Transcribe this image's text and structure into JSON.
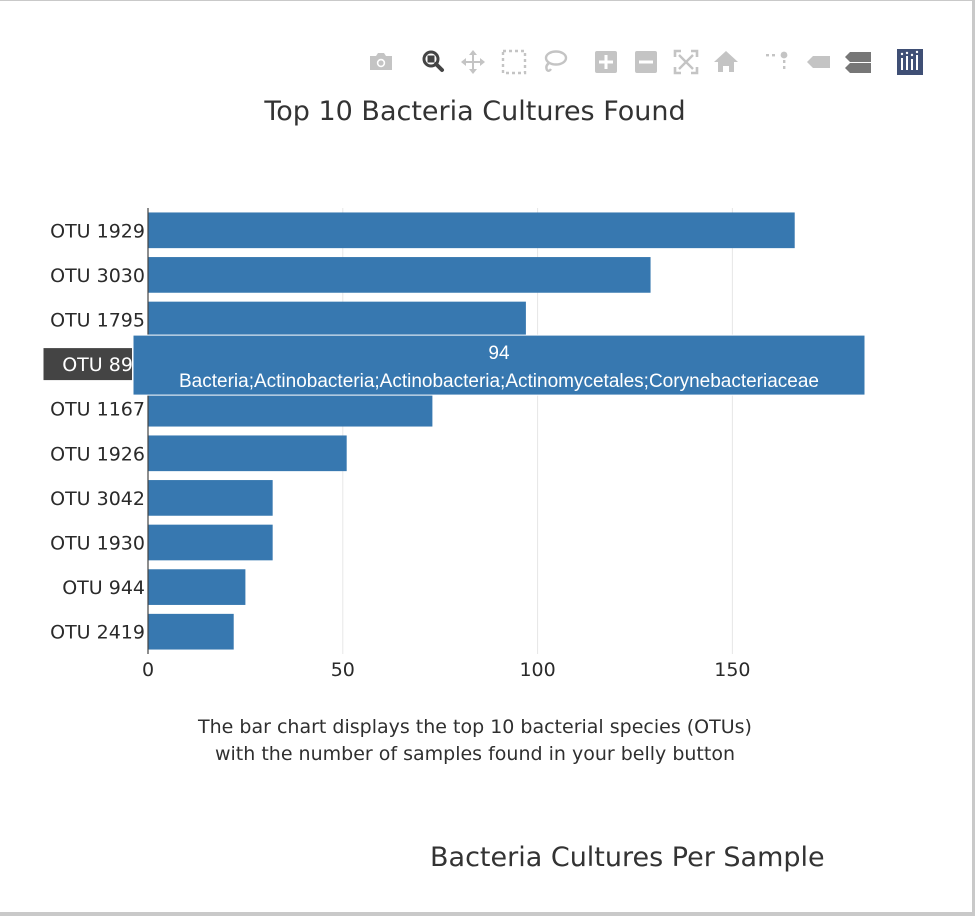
{
  "modebar": {
    "buttons": [
      {
        "icon": "camera-icon",
        "title": "Download plot as a png"
      },
      {
        "icon": "zoom-icon",
        "title": "Zoom"
      },
      {
        "icon": "pan-icon",
        "title": "Pan"
      },
      {
        "icon": "box-select-icon",
        "title": "Box Select"
      },
      {
        "icon": "lasso-select-icon",
        "title": "Lasso Select"
      },
      {
        "icon": "zoom-in-icon",
        "title": "Zoom in"
      },
      {
        "icon": "zoom-out-icon",
        "title": "Zoom out"
      },
      {
        "icon": "autoscale-icon",
        "title": "Autoscale"
      },
      {
        "icon": "reset-axes-icon",
        "title": "Reset axes"
      },
      {
        "icon": "toggle-spike-lines-icon",
        "title": "Toggle Spike Lines"
      },
      {
        "icon": "hover-closest-icon",
        "title": "Show closest data on hover"
      },
      {
        "icon": "hover-compare-icon",
        "title": "Compare data on hover"
      },
      {
        "icon": "plotly-logo-icon",
        "title": "Produced with Plotly"
      }
    ],
    "active": "zoom-icon",
    "colors": {
      "inactive": "#c4c4c4",
      "active": "#444444",
      "logo": "#3f4f75"
    }
  },
  "chart_data": {
    "type": "bar",
    "orientation": "horizontal",
    "title": "Top 10 Bacteria Cultures Found",
    "categories": [
      "OTU 1929",
      "OTU 3030",
      "OTU 1795",
      "OTU 894",
      "OTU 1167",
      "OTU 1926",
      "OTU 3042",
      "OTU 1930",
      "OTU 944",
      "OTU 2419"
    ],
    "values": [
      166,
      129,
      97,
      94,
      73,
      51,
      32,
      32,
      25,
      22
    ],
    "xlim": [
      0,
      192
    ],
    "xticks": [
      0,
      50,
      100,
      150
    ],
    "grid": true,
    "bar_color": "#3778b0",
    "hover": {
      "category": "OTU 894",
      "value": "94",
      "label": "Bacteria;Actinobacteria;Actinobacteria;Actinomycetales;Corynebacteriaceae"
    }
  },
  "caption_line1": "The bar chart displays the top 10 bacterial species (OTUs)",
  "caption_line2": "with the number of samples found in your belly button",
  "section_title": "Bacteria Cultures Per Sample"
}
